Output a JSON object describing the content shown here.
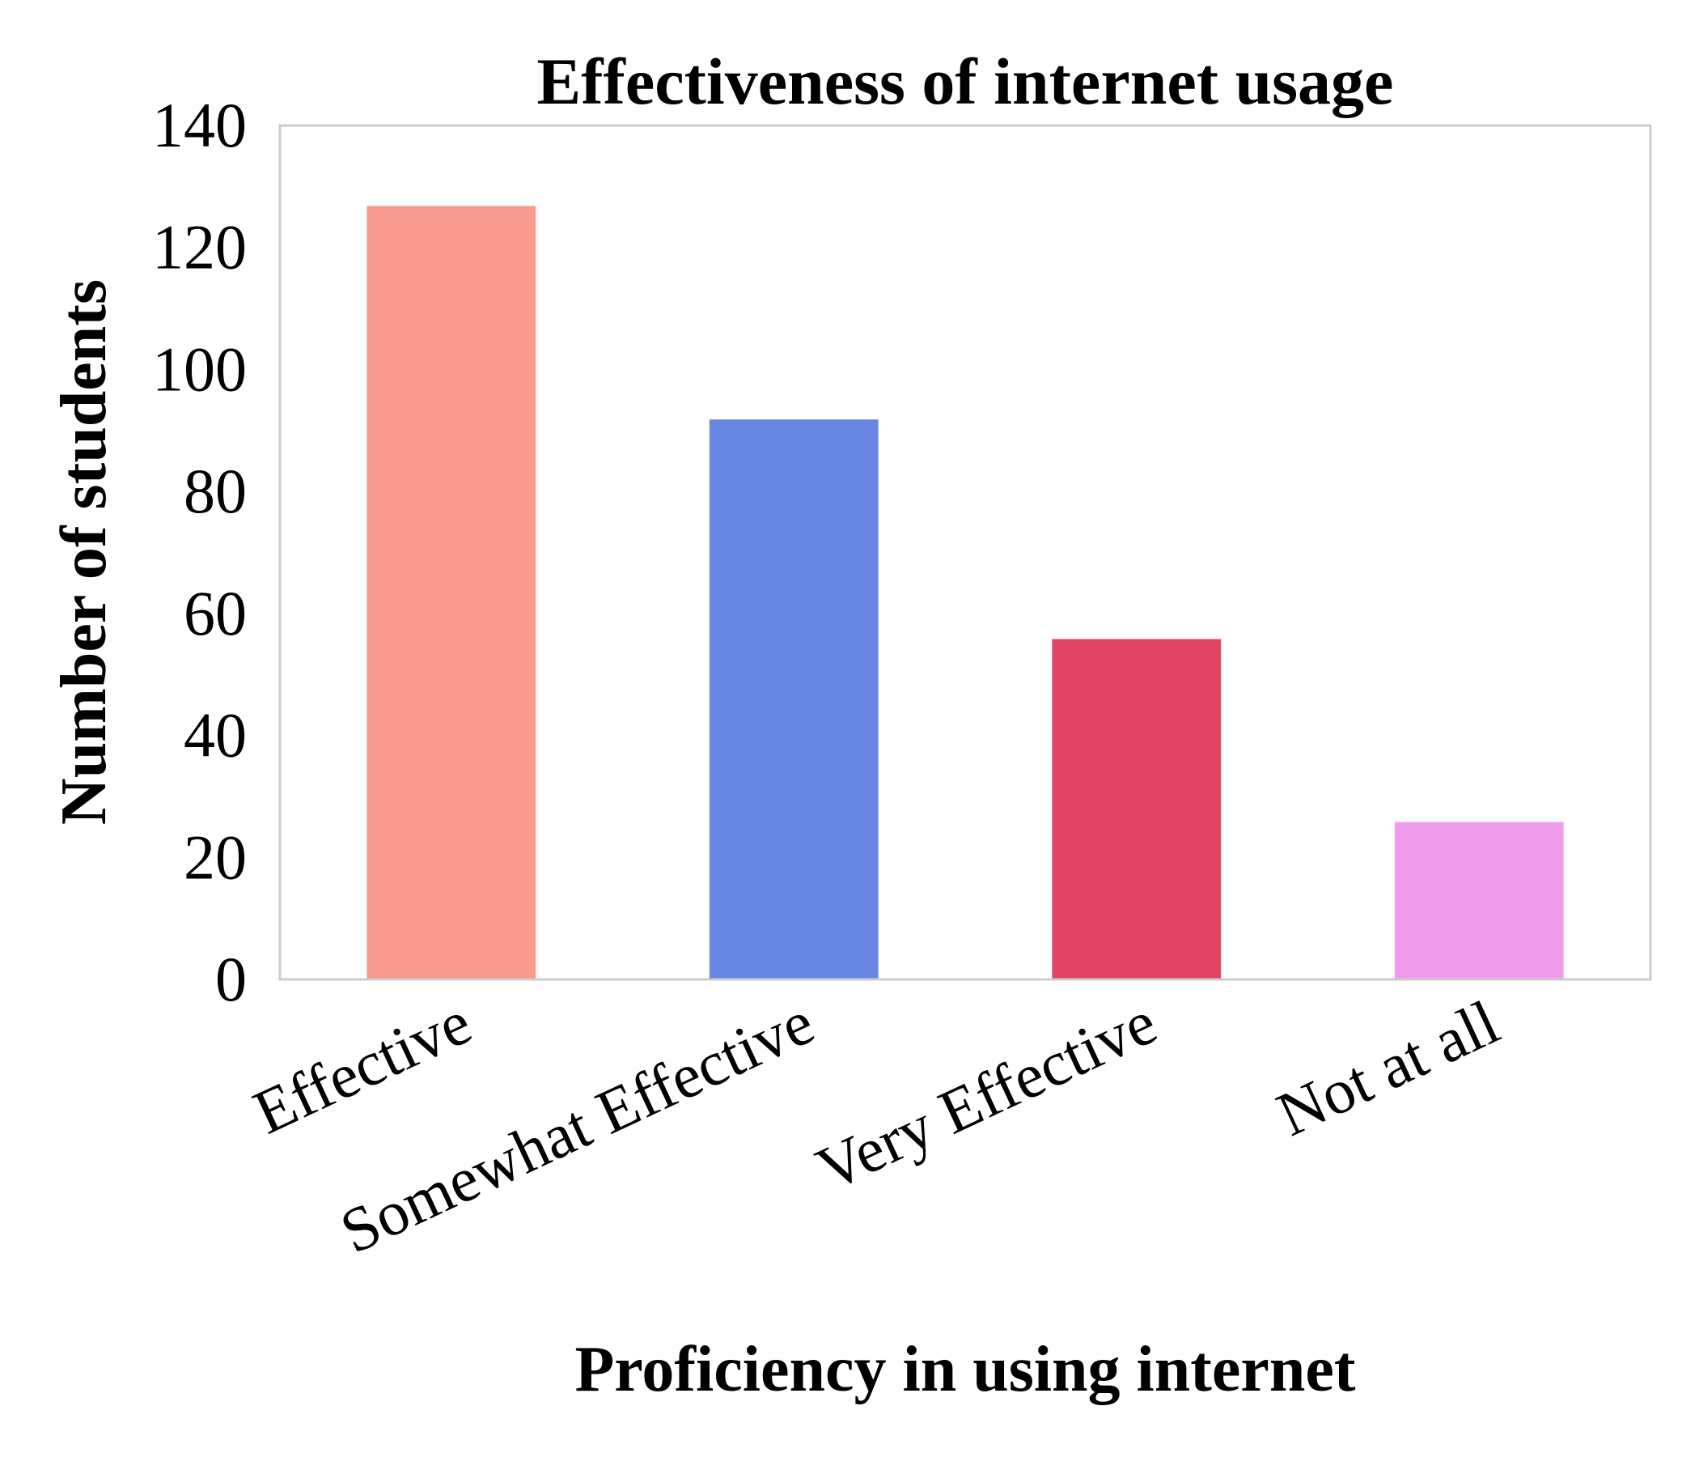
{
  "chart_data": {
    "type": "bar",
    "title": "Effectiveness of internet usage",
    "xlabel": "Proficiency in using internet",
    "ylabel": "Number of students",
    "categories": [
      "Effective",
      "Somewhat Effective",
      "Very Effective",
      "Not at all"
    ],
    "values": [
      127,
      92,
      56,
      26
    ],
    "colors": [
      "#f99a8f",
      "#6887e2",
      "#e04464",
      "#f09cec"
    ],
    "ylim": [
      0,
      140
    ],
    "yticks": [
      "0",
      "20",
      "40",
      "60",
      "80",
      "100",
      "120",
      "140"
    ],
    "grid": false,
    "legend": "none"
  }
}
